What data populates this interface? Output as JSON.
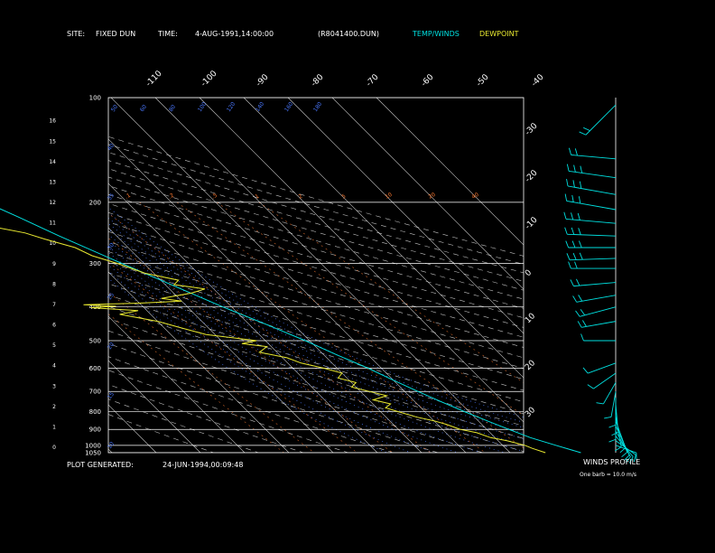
{
  "header": {
    "site_label": "SITE:",
    "site_value": "FIXED DUN",
    "time_label": "TIME:",
    "time_value": "4-AUG-1991,14:00:00",
    "file_name": "(R8041400.DUN)",
    "legend_temp": "TEMP/WINDS",
    "legend_dewpoint": "DEWPOINT"
  },
  "footer": {
    "generated_label": "PLOT GENERATED:",
    "generated_value": "24-JUN-1994,00:09:48",
    "winds_title": "WINDS PROFILE",
    "barb_note": "One barb = 10.0 m/s"
  },
  "colors": {
    "background": "#000000",
    "temp": "#00e0e0",
    "dewpoint": "#e8e830",
    "frame": "#ffffff",
    "isotherm": "#ffffff",
    "dry_adiabat": "#ffffff",
    "moist_adiabat": "#4a78ff",
    "mixing_ratio": "#ff7a30",
    "height_axis": "#6a8cff"
  },
  "chart_data": {
    "type": "skew-t",
    "pressure_ticks": [
      100,
      200,
      300,
      400,
      500,
      600,
      700,
      800,
      900,
      1000,
      1050
    ],
    "pressure_range": [
      100,
      1050
    ],
    "height_ticks_km": [
      0,
      1,
      2,
      3,
      4,
      5,
      6,
      7,
      8,
      9,
      10,
      11,
      12,
      13,
      14,
      15,
      16
    ],
    "top_temp_labels": [
      "-110",
      "-100",
      "-90",
      "-80",
      "-70",
      "-60",
      "-50",
      "-40"
    ],
    "right_temp_labels": [
      "-30",
      "-20",
      "-10",
      "0",
      "10",
      "20",
      "30"
    ],
    "moist_adiabat_labels": [
      "10",
      "15",
      "20",
      "25",
      "30",
      "35",
      "40",
      "50",
      "60",
      "80",
      "100",
      "120",
      "140",
      "160",
      "180"
    ],
    "mixing_ratio_labels": [
      ".1",
      ".2",
      ".5",
      "1",
      "2",
      "5",
      "10",
      "20",
      "40"
    ],
    "temperature": [
      {
        "p": 1050,
        "t": 26
      },
      {
        "p": 1000,
        "t": 22
      },
      {
        "p": 950,
        "t": 18
      },
      {
        "p": 900,
        "t": 15
      },
      {
        "p": 850,
        "t": 12
      },
      {
        "p": 800,
        "t": 9
      },
      {
        "p": 750,
        "t": 6
      },
      {
        "p": 700,
        "t": 3
      },
      {
        "p": 650,
        "t": 0
      },
      {
        "p": 600,
        "t": -3
      },
      {
        "p": 550,
        "t": -7
      },
      {
        "p": 500,
        "t": -11
      },
      {
        "p": 450,
        "t": -16
      },
      {
        "p": 400,
        "t": -22
      },
      {
        "p": 350,
        "t": -28
      },
      {
        "p": 300,
        "t": -35
      },
      {
        "p": 250,
        "t": -43
      },
      {
        "p": 220,
        "t": -48
      },
      {
        "p": 200,
        "t": -52
      },
      {
        "p": 180,
        "t": -56
      },
      {
        "p": 160,
        "t": -61
      },
      {
        "p": 150,
        "t": -63
      },
      {
        "p": 140,
        "t": -63
      },
      {
        "p": 130,
        "t": -61
      },
      {
        "p": 120,
        "t": -59
      },
      {
        "p": 110,
        "t": -58
      },
      {
        "p": 100,
        "t": -57
      }
    ],
    "dewpoint": [
      {
        "p": 1050,
        "t": 18
      },
      {
        "p": 1020,
        "t": 16
      },
      {
        "p": 1000,
        "t": 15
      },
      {
        "p": 970,
        "t": 12
      },
      {
        "p": 950,
        "t": 9
      },
      {
        "p": 920,
        "t": 7
      },
      {
        "p": 900,
        "t": 4
      },
      {
        "p": 870,
        "t": 2
      },
      {
        "p": 850,
        "t": 0
      },
      {
        "p": 830,
        "t": -3
      },
      {
        "p": 800,
        "t": -6
      },
      {
        "p": 780,
        "t": -8
      },
      {
        "p": 760,
        "t": -6
      },
      {
        "p": 740,
        "t": -9
      },
      {
        "p": 720,
        "t": -5
      },
      {
        "p": 700,
        "t": -8
      },
      {
        "p": 680,
        "t": -11
      },
      {
        "p": 660,
        "t": -9
      },
      {
        "p": 640,
        "t": -12
      },
      {
        "p": 620,
        "t": -10
      },
      {
        "p": 600,
        "t": -13
      },
      {
        "p": 580,
        "t": -17
      },
      {
        "p": 560,
        "t": -19
      },
      {
        "p": 540,
        "t": -24
      },
      {
        "p": 520,
        "t": -21
      },
      {
        "p": 510,
        "t": -26
      },
      {
        "p": 500,
        "t": -22
      },
      {
        "p": 480,
        "t": -32
      },
      {
        "p": 460,
        "t": -36
      },
      {
        "p": 440,
        "t": -40
      },
      {
        "p": 420,
        "t": -47
      },
      {
        "p": 410,
        "t": -42
      },
      {
        "p": 402,
        "t": -52
      },
      {
        "p": 398,
        "t": -46
      },
      {
        "p": 394,
        "t": -53
      },
      {
        "p": 390,
        "t": -40
      },
      {
        "p": 385,
        "t": -30
      },
      {
        "p": 378,
        "t": -34
      },
      {
        "p": 365,
        "t": -26
      },
      {
        "p": 355,
        "t": -22
      },
      {
        "p": 345,
        "t": -28
      },
      {
        "p": 335,
        "t": -26
      },
      {
        "p": 320,
        "t": -32
      },
      {
        "p": 300,
        "t": -36
      },
      {
        "p": 285,
        "t": -40
      },
      {
        "p": 270,
        "t": -42
      },
      {
        "p": 255,
        "t": -47
      },
      {
        "p": 245,
        "t": -50
      },
      {
        "p": 235,
        "t": -56
      },
      {
        "p": 225,
        "t": -59
      },
      {
        "p": 215,
        "t": -58
      },
      {
        "p": 200,
        "t": -62
      }
    ],
    "winds": [
      {
        "p": 1000,
        "spd": 6,
        "dir": 110
      },
      {
        "p": 970,
        "spd": 8,
        "dir": 125
      },
      {
        "p": 940,
        "spd": 10,
        "dir": 140
      },
      {
        "p": 910,
        "spd": 12,
        "dir": 150
      },
      {
        "p": 880,
        "spd": 14,
        "dir": 155
      },
      {
        "p": 850,
        "spd": 15,
        "dir": 160
      },
      {
        "p": 820,
        "spd": 14,
        "dir": 170
      },
      {
        "p": 790,
        "spd": 12,
        "dir": 180
      },
      {
        "p": 760,
        "spd": 11,
        "dir": 175
      },
      {
        "p": 730,
        "spd": 10,
        "dir": 180
      },
      {
        "p": 700,
        "spd": 9,
        "dir": 190
      },
      {
        "p": 660,
        "spd": 8,
        "dir": 210
      },
      {
        "p": 620,
        "spd": 10,
        "dir": 235
      },
      {
        "p": 580,
        "spd": 12,
        "dir": 250
      },
      {
        "p": 500,
        "spd": 14,
        "dir": 270
      },
      {
        "p": 440,
        "spd": 16,
        "dir": 260
      },
      {
        "p": 400,
        "spd": 18,
        "dir": 255
      },
      {
        "p": 370,
        "spd": 20,
        "dir": 260
      },
      {
        "p": 340,
        "spd": 22,
        "dir": 265
      },
      {
        "p": 310,
        "spd": 24,
        "dir": 270
      },
      {
        "p": 290,
        "spd": 25,
        "dir": 268
      },
      {
        "p": 270,
        "spd": 26,
        "dir": 270
      },
      {
        "p": 250,
        "spd": 27,
        "dir": 272
      },
      {
        "p": 230,
        "spd": 28,
        "dir": 275
      },
      {
        "p": 210,
        "spd": 28,
        "dir": 280
      },
      {
        "p": 190,
        "spd": 27,
        "dir": 280
      },
      {
        "p": 170,
        "spd": 26,
        "dir": 278
      },
      {
        "p": 150,
        "spd": 24,
        "dir": 275
      },
      {
        "p": 105,
        "spd": 22,
        "dir": 225
      }
    ]
  }
}
